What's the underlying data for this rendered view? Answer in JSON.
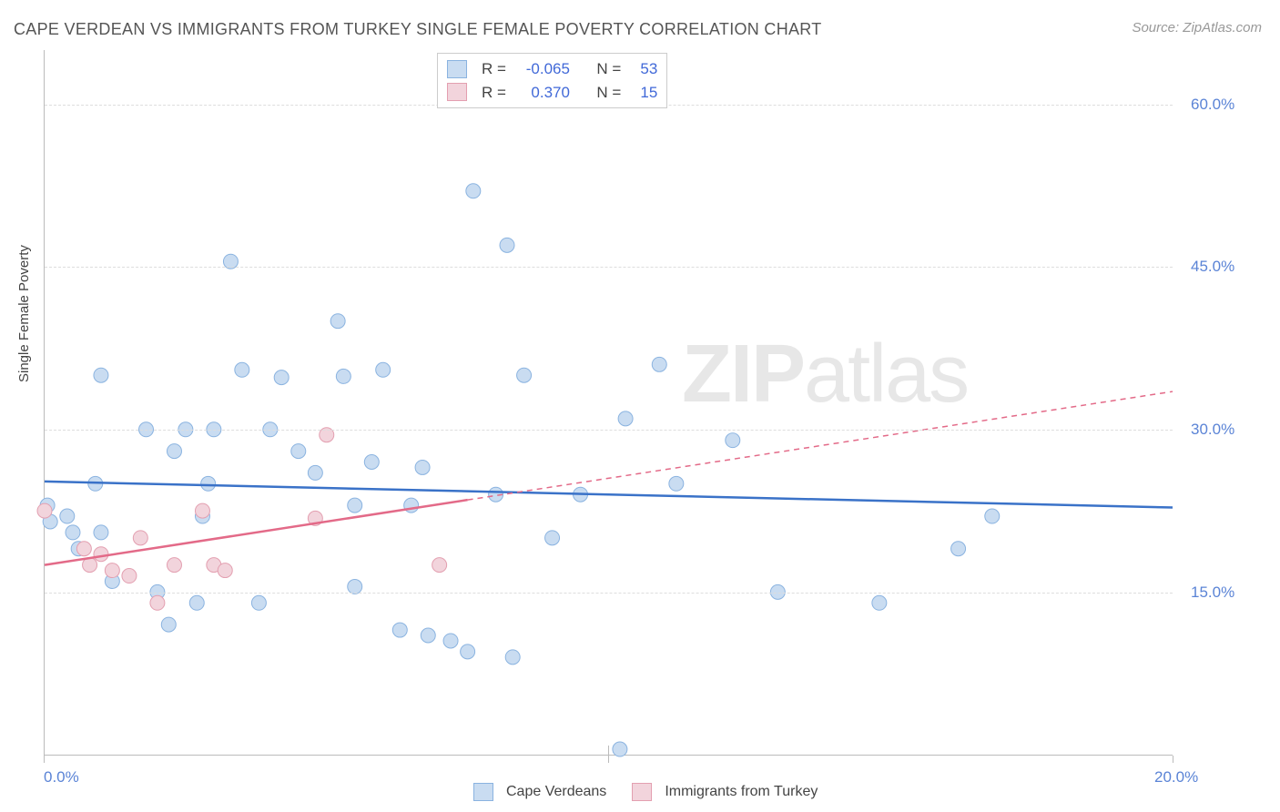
{
  "title": "CAPE VERDEAN VS IMMIGRANTS FROM TURKEY SINGLE FEMALE POVERTY CORRELATION CHART",
  "source": "Source: ZipAtlas.com",
  "y_axis_label": "Single Female Poverty",
  "watermark_bold": "ZIP",
  "watermark_light": "atlas",
  "chart": {
    "type": "scatter",
    "xlim": [
      0,
      20
    ],
    "ylim": [
      0,
      65
    ],
    "x_ticks": [
      0,
      10,
      20
    ],
    "x_tick_labels": [
      "0.0%",
      "",
      "20.0%"
    ],
    "y_ticks": [
      15,
      30,
      45,
      60
    ],
    "y_tick_labels": [
      "15.0%",
      "30.0%",
      "45.0%",
      "60.0%"
    ],
    "grid_color": "#dddddd",
    "background_color": "#ffffff",
    "marker_radius": 8,
    "marker_stroke_width": 1,
    "trend_line_width": 2.5,
    "series": [
      {
        "name": "Cape Verdeans",
        "color_fill": "#c9dcf1",
        "color_stroke": "#8ab3e0",
        "line_color": "#3a72c8",
        "R": "-0.065",
        "N": "53",
        "trend": {
          "x1": 0,
          "y1": 25.2,
          "x2": 20,
          "y2": 22.8,
          "x_solid_end": 20
        },
        "points": [
          [
            0.05,
            23.0
          ],
          [
            0.1,
            21.5
          ],
          [
            0.4,
            22.0
          ],
          [
            0.5,
            20.5
          ],
          [
            0.6,
            19.0
          ],
          [
            0.9,
            25.0
          ],
          [
            1.0,
            20.5
          ],
          [
            1.0,
            35.0
          ],
          [
            1.2,
            16.0
          ],
          [
            1.8,
            30.0
          ],
          [
            2.0,
            15.0
          ],
          [
            2.2,
            12.0
          ],
          [
            2.3,
            28.0
          ],
          [
            2.5,
            30.0
          ],
          [
            2.7,
            14.0
          ],
          [
            2.8,
            22.0
          ],
          [
            2.9,
            25.0
          ],
          [
            3.0,
            30.0
          ],
          [
            3.3,
            45.5
          ],
          [
            3.5,
            35.5
          ],
          [
            3.8,
            14.0
          ],
          [
            4.0,
            30.0
          ],
          [
            4.2,
            34.8
          ],
          [
            4.5,
            28.0
          ],
          [
            4.8,
            26.0
          ],
          [
            5.2,
            40.0
          ],
          [
            5.3,
            34.9
          ],
          [
            5.5,
            23.0
          ],
          [
            5.5,
            15.5
          ],
          [
            5.8,
            27.0
          ],
          [
            6.0,
            35.5
          ],
          [
            6.3,
            11.5
          ],
          [
            6.5,
            23.0
          ],
          [
            6.7,
            26.5
          ],
          [
            6.8,
            11.0
          ],
          [
            7.2,
            10.5
          ],
          [
            7.5,
            9.5
          ],
          [
            7.6,
            52.0
          ],
          [
            8.0,
            24.0
          ],
          [
            8.2,
            47.0
          ],
          [
            8.3,
            9.0
          ],
          [
            8.5,
            35.0
          ],
          [
            9.0,
            20.0
          ],
          [
            9.5,
            24.0
          ],
          [
            10.3,
            31.0
          ],
          [
            10.9,
            36.0
          ],
          [
            11.2,
            25.0
          ],
          [
            12.2,
            29.0
          ],
          [
            13.0,
            15.0
          ],
          [
            14.8,
            14.0
          ],
          [
            16.2,
            19.0
          ],
          [
            16.8,
            22.0
          ],
          [
            10.2,
            0.5
          ]
        ]
      },
      {
        "name": "Immigrants from Turkey",
        "color_fill": "#f2d4dc",
        "color_stroke": "#e39fb0",
        "line_color": "#e36a88",
        "R": "0.370",
        "N": "15",
        "trend": {
          "x1": 0,
          "y1": 17.5,
          "x2": 20,
          "y2": 33.5,
          "x_solid_end": 7.5
        },
        "points": [
          [
            0.0,
            22.5
          ],
          [
            0.7,
            19.0
          ],
          [
            0.8,
            17.5
          ],
          [
            1.0,
            18.5
          ],
          [
            1.2,
            17.0
          ],
          [
            1.5,
            16.5
          ],
          [
            1.7,
            20.0
          ],
          [
            2.0,
            14.0
          ],
          [
            2.3,
            17.5
          ],
          [
            2.8,
            22.5
          ],
          [
            3.0,
            17.5
          ],
          [
            3.2,
            17.0
          ],
          [
            4.8,
            21.8
          ],
          [
            5.0,
            29.5
          ],
          [
            7.0,
            17.5
          ]
        ]
      }
    ]
  },
  "legend_bottom": [
    {
      "label": "Cape Verdeans",
      "fill": "#c9dcf1",
      "stroke": "#8ab3e0"
    },
    {
      "label": "Immigrants from Turkey",
      "fill": "#f2d4dc",
      "stroke": "#e39fb0"
    }
  ],
  "stats_labels": {
    "R": "R =",
    "N": "N ="
  }
}
